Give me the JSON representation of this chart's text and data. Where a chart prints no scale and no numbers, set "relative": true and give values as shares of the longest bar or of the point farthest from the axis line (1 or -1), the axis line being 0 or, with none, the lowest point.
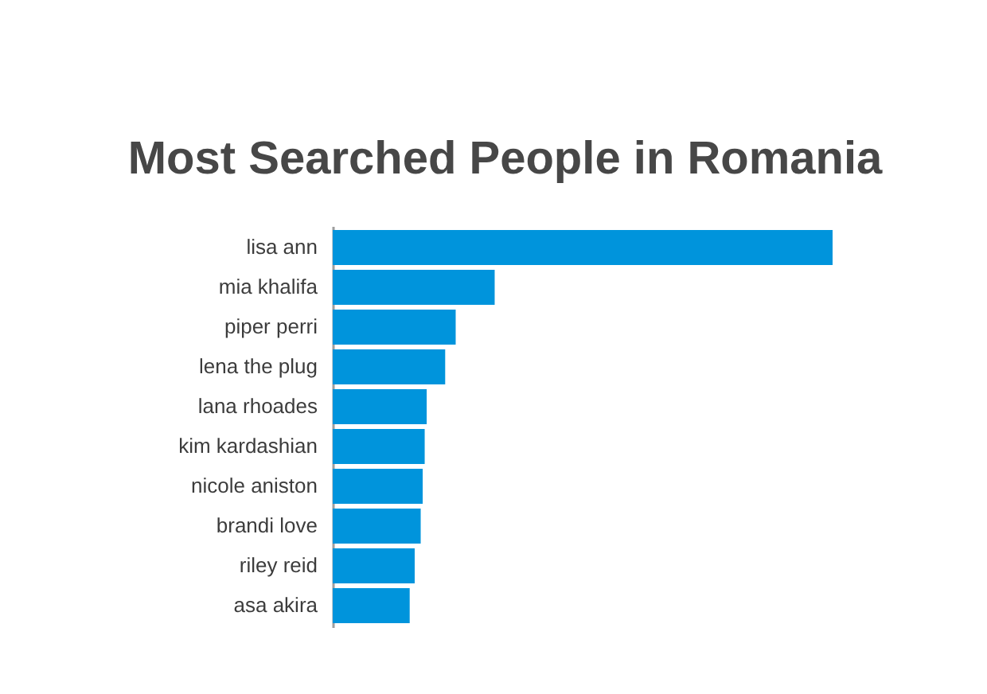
{
  "chart_data": {
    "type": "bar",
    "orientation": "horizontal",
    "relative": true,
    "title": "Most Searched People in Romania",
    "categories": [
      "lisa ann",
      "mia khalifa",
      "piper perri",
      "lena the plug",
      "lana rhoades",
      "kim kardashian",
      "nicole aniston",
      "brandi love",
      "riley reid",
      "asa akira"
    ],
    "values": [
      1,
      0.324,
      0.246,
      0.225,
      0.188,
      0.184,
      0.18,
      0.176,
      0.164,
      0.154
    ],
    "color": "#0094dc"
  }
}
